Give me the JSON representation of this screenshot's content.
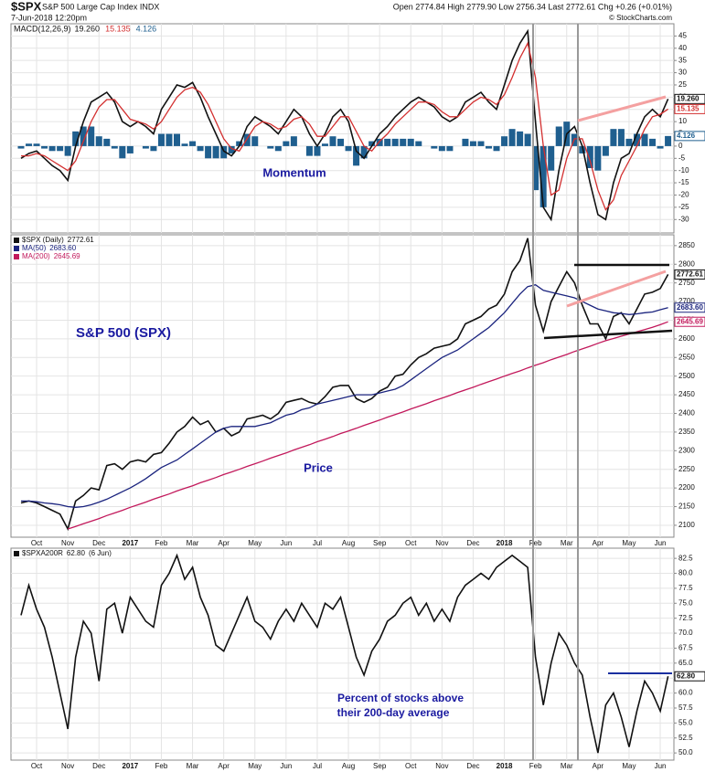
{
  "header": {
    "symbol": "$SPX",
    "name": "S&P 500 Large Cap Index INDX",
    "date": "7-Jun-2018 12:20pm",
    "quote": "Open 2774.84 High 2779.90 Low 2756.34 Last 2772.61 Chg +0.26 (+0.01%)",
    "credit": "© StockCharts.com"
  },
  "chart_data": [
    {
      "type": "line",
      "legend_title": "MACD(12,26,9)",
      "annotation": "Momentum",
      "ylim": [
        -35.5,
        50
      ],
      "yticks": [
        -30,
        -25,
        -20,
        -15,
        -10,
        -5,
        0,
        5,
        10,
        15,
        20,
        25,
        30,
        35,
        40,
        45
      ],
      "grid": true,
      "series": [
        {
          "type": "bar",
          "color": "#1f5f8f",
          "last_label": "4.126",
          "values": [
            -1,
            1,
            1,
            -1,
            -2,
            -2,
            -4,
            6,
            8,
            8,
            4,
            3,
            -1,
            -5,
            -3,
            0,
            -1,
            -2,
            5,
            5,
            5,
            1,
            2,
            -2,
            -5,
            -5,
            -5,
            -3,
            2,
            5,
            4,
            0,
            -1,
            -2,
            2,
            4,
            0,
            -4,
            -4,
            1,
            4,
            3,
            -2,
            -8,
            -5,
            2,
            3,
            3,
            3,
            3,
            3,
            2,
            0,
            -1,
            -2,
            -2,
            0,
            3,
            2,
            2,
            -1,
            -2,
            4,
            7,
            6,
            5,
            -18,
            -25,
            -10,
            8,
            10,
            5,
            -3,
            -9,
            -10,
            -4,
            7,
            7,
            3,
            5,
            5,
            3,
            -1,
            4.126
          ]
        },
        {
          "type": "line",
          "color": "#111111",
          "last_label": "19.260",
          "values": [
            -5,
            -3,
            -2,
            -5,
            -8,
            -10,
            -14,
            0,
            10,
            18,
            20,
            22,
            18,
            10,
            8,
            10,
            8,
            5,
            15,
            20,
            25,
            24,
            26,
            20,
            12,
            5,
            -2,
            -4,
            0,
            8,
            12,
            10,
            8,
            5,
            10,
            15,
            12,
            5,
            0,
            5,
            12,
            15,
            10,
            -2,
            -5,
            0,
            5,
            8,
            12,
            15,
            18,
            20,
            18,
            16,
            12,
            10,
            12,
            18,
            20,
            22,
            18,
            15,
            25,
            35,
            42,
            47,
            10,
            -25,
            -30,
            -10,
            5,
            8,
            0,
            -15,
            -28,
            -30,
            -15,
            -5,
            -3,
            5,
            12,
            15,
            12,
            19.26
          ]
        },
        {
          "type": "line",
          "color": "#d32f2f",
          "last_label": "15.135",
          "values": [
            -4,
            -4,
            -3,
            -4,
            -6,
            -8,
            -10,
            -6,
            2,
            10,
            16,
            19,
            19,
            15,
            11,
            10,
            9,
            7,
            10,
            15,
            20,
            23,
            24,
            22,
            17,
            10,
            3,
            -1,
            -2,
            3,
            8,
            10,
            9,
            7,
            8,
            11,
            12,
            9,
            4,
            4,
            8,
            12,
            12,
            6,
            0,
            -2,
            2,
            5,
            9,
            12,
            15,
            18,
            18,
            17,
            14,
            12,
            12,
            15,
            18,
            20,
            19,
            17,
            21,
            28,
            36,
            42,
            28,
            0,
            -20,
            -18,
            -5,
            3,
            3,
            -6,
            -18,
            -26,
            -22,
            -12,
            -6,
            0,
            7,
            12,
            13,
            15.135
          ]
        }
      ]
    },
    {
      "type": "line",
      "annotation": "S&P 500 (SPX)",
      "annotation2": "Price",
      "categories": [
        null,
        null,
        "Oct",
        null,
        null,
        null,
        "Nov",
        null,
        null,
        null,
        "Dec",
        null,
        null,
        null,
        "2017",
        null,
        null,
        null,
        "Feb",
        null,
        null,
        null,
        "Mar",
        null,
        null,
        null,
        "Apr",
        null,
        null,
        null,
        "May",
        null,
        null,
        null,
        "Jun",
        null,
        null,
        null,
        "Jul",
        null,
        null,
        null,
        "Aug",
        null,
        null,
        null,
        "Sep",
        null,
        null,
        null,
        "Oct",
        null,
        null,
        null,
        "Nov",
        null,
        null,
        null,
        "Dec",
        null,
        null,
        null,
        "2018",
        null,
        null,
        null,
        "Feb",
        null,
        null,
        null,
        "Mar",
        null,
        null,
        null,
        "Apr",
        null,
        null,
        null,
        "May",
        null,
        null,
        null,
        "Jun",
        null
      ],
      "ylim": [
        2068,
        2879
      ],
      "yticks": [
        2100,
        2150,
        2200,
        2250,
        2300,
        2350,
        2400,
        2450,
        2500,
        2550,
        2600,
        2650,
        2700,
        2750,
        2800,
        2850
      ],
      "grid": true,
      "series": [
        {
          "name": "$SPX (Daily)",
          "color": "#111111",
          "last_label": "2772.61",
          "values": [
            2160,
            2165,
            2160,
            2150,
            2140,
            2130,
            2090,
            2165,
            2180,
            2200,
            2195,
            2260,
            2265,
            2250,
            2270,
            2275,
            2270,
            2290,
            2295,
            2320,
            2350,
            2365,
            2390,
            2370,
            2380,
            2350,
            2360,
            2340,
            2350,
            2385,
            2390,
            2395,
            2385,
            2400,
            2430,
            2435,
            2440,
            2430,
            2425,
            2445,
            2470,
            2475,
            2475,
            2440,
            2430,
            2440,
            2460,
            2470,
            2500,
            2505,
            2530,
            2550,
            2560,
            2575,
            2580,
            2585,
            2600,
            2640,
            2650,
            2660,
            2680,
            2690,
            2720,
            2780,
            2810,
            2870,
            2690,
            2620,
            2700,
            2740,
            2780,
            2750,
            2690,
            2640,
            2640,
            2600,
            2660,
            2670,
            2640,
            2680,
            2720,
            2725,
            2735,
            2772.61
          ]
        },
        {
          "name": "MA(50)",
          "color": "#1a237e",
          "last_label": "2683.60",
          "values": [
            2165,
            2165,
            2163,
            2160,
            2158,
            2155,
            2150,
            2148,
            2150,
            2155,
            2162,
            2170,
            2180,
            2190,
            2200,
            2212,
            2225,
            2240,
            2255,
            2265,
            2275,
            2290,
            2305,
            2320,
            2335,
            2350,
            2360,
            2365,
            2365,
            2365,
            2365,
            2370,
            2375,
            2385,
            2395,
            2400,
            2410,
            2415,
            2425,
            2430,
            2435,
            2440,
            2445,
            2450,
            2450,
            2450,
            2455,
            2460,
            2465,
            2475,
            2490,
            2505,
            2520,
            2535,
            2550,
            2560,
            2570,
            2585,
            2600,
            2615,
            2630,
            2650,
            2670,
            2695,
            2720,
            2740,
            2745,
            2730,
            2725,
            2720,
            2715,
            2710,
            2700,
            2690,
            2680,
            2675,
            2670,
            2668,
            2665,
            2667,
            2670,
            2672,
            2678,
            2683.6
          ]
        },
        {
          "name": "MA(200)",
          "color": "#c2185b",
          "last_label": "2645.69",
          "values": [
            null,
            null,
            null,
            null,
            null,
            null,
            2090,
            2097,
            2104,
            2111,
            2118,
            2126,
            2133,
            2140,
            2148,
            2155,
            2162,
            2170,
            2177,
            2184,
            2192,
            2199,
            2206,
            2214,
            2221,
            2228,
            2236,
            2243,
            2250,
            2258,
            2265,
            2272,
            2280,
            2287,
            2294,
            2302,
            2309,
            2316,
            2324,
            2331,
            2338,
            2346,
            2353,
            2360,
            2368,
            2375,
            2382,
            2390,
            2397,
            2404,
            2412,
            2419,
            2426,
            2434,
            2441,
            2448,
            2456,
            2463,
            2470,
            2478,
            2485,
            2492,
            2500,
            2507,
            2514,
            2522,
            2529,
            2536,
            2544,
            2551,
            2558,
            2566,
            2573,
            2580,
            2588,
            2595,
            2601,
            2607,
            2613,
            2619,
            2625,
            2631,
            2638,
            2645.69
          ]
        }
      ]
    },
    {
      "type": "line",
      "annotation": "Percent of stocks above",
      "annotation2": "their 200-day average",
      "legend_suffix": "(6 Jun)",
      "categories": [
        null,
        null,
        "Oct",
        null,
        null,
        null,
        "Nov",
        null,
        null,
        null,
        "Dec",
        null,
        null,
        null,
        "2017",
        null,
        null,
        null,
        "Feb",
        null,
        null,
        null,
        "Mar",
        null,
        null,
        null,
        "Apr",
        null,
        null,
        null,
        "May",
        null,
        null,
        null,
        "Jun",
        null,
        null,
        null,
        "Jul",
        null,
        null,
        null,
        "Aug",
        null,
        null,
        null,
        "Sep",
        null,
        null,
        null,
        "Oct",
        null,
        null,
        null,
        "Nov",
        null,
        null,
        null,
        "Dec",
        null,
        null,
        null,
        "2018",
        null,
        null,
        null,
        "Feb",
        null,
        null,
        null,
        "Mar",
        null,
        null,
        null,
        "Apr",
        null,
        null,
        null,
        "May",
        null,
        null,
        null,
        "Jun",
        null
      ],
      "ylim": [
        48.8,
        84.2
      ],
      "yticks": [
        {
          "value": 50,
          "label": "50.0"
        },
        52.5,
        {
          "value": 55,
          "label": "55.0"
        },
        57.5,
        {
          "value": 60,
          "label": "60.0"
        },
        62.5,
        {
          "value": 65,
          "label": "65.0"
        },
        67.5,
        {
          "value": 70,
          "label": "70.0"
        },
        72.5,
        {
          "value": 75,
          "label": "75.0"
        },
        77.5,
        {
          "value": 80,
          "label": "80.0"
        },
        82.5
      ],
      "grid": true,
      "series": [
        {
          "name": "$SPXA200R",
          "color": "#111111",
          "last_label": "62.80",
          "values": [
            73,
            78,
            74,
            71,
            66,
            60,
            54,
            66,
            72,
            70,
            62,
            74,
            75,
            70,
            76,
            74,
            72,
            71,
            78,
            80,
            83,
            79,
            81,
            76,
            73,
            68,
            67,
            70,
            73,
            76,
            72,
            71,
            69,
            72,
            74,
            72,
            75,
            73,
            71,
            75,
            74,
            76,
            71,
            66,
            63,
            67,
            69,
            72,
            73,
            75,
            76,
            73,
            75,
            72,
            74,
            72,
            76,
            78,
            79,
            80,
            79,
            81,
            82,
            83,
            82,
            81,
            66,
            58,
            65,
            70,
            68,
            65,
            63,
            56,
            50,
            58,
            60,
            56,
            51,
            57,
            62,
            60,
            57,
            62.8
          ]
        }
      ]
    }
  ]
}
